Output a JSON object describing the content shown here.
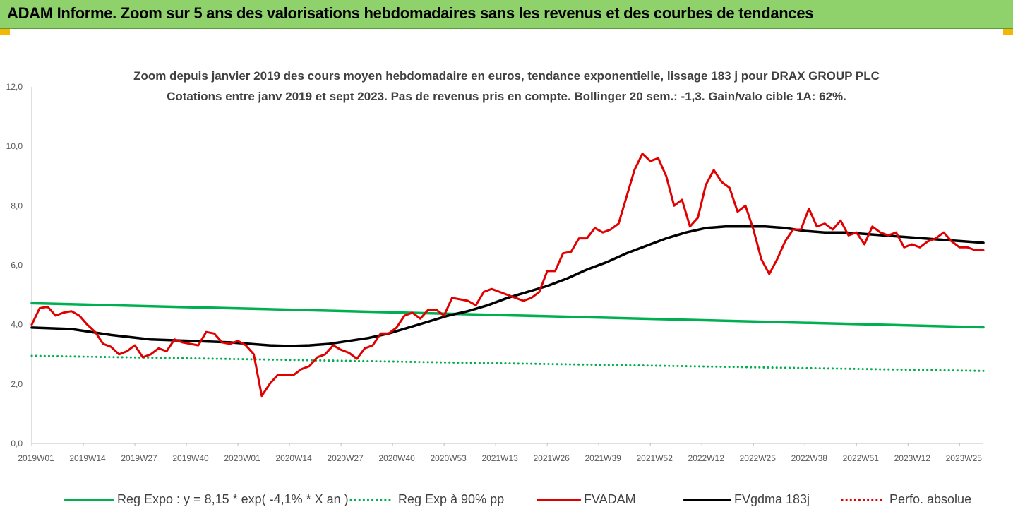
{
  "header": {
    "title": "ADAM Informe. Zoom sur 5 ans des valorisations hebdomadaires sans les revenus et des courbes de tendances"
  },
  "chart_data": {
    "type": "line",
    "title_lines": [
      "Zoom depuis janvier 2019 des cours moyen hebdomadaire en euros, tendance exponentielle, lissage 183 j pour DRAX GROUP PLC",
      "Cotations entre janv 2019 et sept 2023. Pas de revenus pris en compte. Bollinger 20 sem.: -1,3. Gain/valo cible 1A: 62%."
    ],
    "xlabel": "",
    "ylabel": "",
    "ylim": [
      0,
      12
    ],
    "yticks": [
      "0,0",
      "2,0",
      "4,0",
      "6,0",
      "8,0",
      "10,0",
      "12,0"
    ],
    "x_start_week": 0,
    "x_end_week": 240,
    "xtick_labels": [
      "2019W01",
      "2019W14",
      "2019W27",
      "2019W40",
      "2020W01",
      "2020W14",
      "2020W27",
      "2020W40",
      "2020W53",
      "2021W13",
      "2021W26",
      "2021W39",
      "2021W52",
      "2022W12",
      "2022W25",
      "2022W38",
      "2022W51",
      "2023W12",
      "2023W25"
    ],
    "xtick_weeks": [
      0,
      13,
      26,
      39,
      52,
      65,
      78,
      91,
      104,
      117,
      130,
      143,
      156,
      169,
      182,
      195,
      208,
      221,
      234
    ],
    "grid": false,
    "legend_position": "bottom",
    "series": [
      {
        "name": "Reg  Expo : y = 8,15 * exp( -4,1% *  X   an )",
        "color": "#00b050",
        "style": "solid",
        "x": [
          0,
          240
        ],
        "values": [
          4.72,
          3.91
        ]
      },
      {
        "name": "Reg  Exp à 90% pp",
        "color": "#00b050",
        "style": "dotted",
        "x": [
          0,
          240
        ],
        "values": [
          2.95,
          2.44
        ]
      },
      {
        "name": "FVADAM",
        "color": "#e00000",
        "style": "solid",
        "x": [
          0,
          2,
          4,
          6,
          8,
          10,
          12,
          14,
          16,
          18,
          20,
          22,
          24,
          26,
          28,
          30,
          32,
          34,
          36,
          38,
          40,
          42,
          44,
          46,
          48,
          50,
          52,
          54,
          56,
          58,
          60,
          62,
          64,
          66,
          68,
          70,
          72,
          74,
          76,
          78,
          80,
          82,
          84,
          86,
          88,
          90,
          92,
          94,
          96,
          98,
          100,
          102,
          104,
          106,
          108,
          110,
          112,
          114,
          116,
          118,
          120,
          122,
          124,
          126,
          128,
          130,
          132,
          134,
          136,
          138,
          140,
          142,
          144,
          146,
          148,
          150,
          152,
          154,
          156,
          158,
          160,
          162,
          164,
          166,
          168,
          170,
          172,
          174,
          176,
          178,
          180,
          182,
          184,
          186,
          188,
          190,
          192,
          194,
          196,
          198,
          200,
          202,
          204,
          206,
          208,
          210,
          212,
          214,
          216,
          218,
          220,
          222,
          224,
          226,
          228,
          230,
          232,
          234,
          236,
          238,
          240
        ],
        "values": [
          4.0,
          4.55,
          4.6,
          4.3,
          4.4,
          4.45,
          4.3,
          4.0,
          3.75,
          3.35,
          3.25,
          3.0,
          3.1,
          3.3,
          2.9,
          3.0,
          3.2,
          3.1,
          3.5,
          3.4,
          3.35,
          3.3,
          3.75,
          3.7,
          3.4,
          3.35,
          3.45,
          3.3,
          3.0,
          1.6,
          2.0,
          2.3,
          2.3,
          2.3,
          2.5,
          2.6,
          2.9,
          3.0,
          3.3,
          3.15,
          3.05,
          2.85,
          3.2,
          3.3,
          3.7,
          3.7,
          3.9,
          4.3,
          4.4,
          4.2,
          4.5,
          4.5,
          4.3,
          4.9,
          4.85,
          4.8,
          4.65,
          5.1,
          5.2,
          5.1,
          5.0,
          4.9,
          4.8,
          4.9,
          5.1,
          5.8,
          5.8,
          6.4,
          6.45,
          6.9,
          6.9,
          7.25,
          7.1,
          7.2,
          7.4,
          8.3,
          9.2,
          9.75,
          9.5,
          9.6,
          9.0,
          8.0,
          8.2,
          7.3,
          7.6,
          8.7,
          9.2,
          8.8,
          8.6,
          7.8,
          8.0,
          7.2,
          6.2,
          5.7,
          6.2,
          6.8,
          7.2,
          7.2,
          7.9,
          7.3,
          7.4,
          7.2,
          7.5,
          7.0,
          7.1,
          6.7,
          7.3,
          7.1,
          7.0,
          7.1,
          6.6,
          6.7,
          6.6,
          6.8,
          6.9,
          7.1,
          6.8,
          6.6,
          6.6,
          6.5,
          6.5
        ]
      },
      {
        "name": "FVgdma  183j",
        "color": "#000000",
        "style": "solid",
        "x": [
          0,
          10,
          20,
          30,
          40,
          50,
          55,
          60,
          65,
          70,
          75,
          80,
          85,
          90,
          95,
          100,
          105,
          110,
          115,
          120,
          125,
          130,
          135,
          140,
          145,
          150,
          155,
          160,
          165,
          170,
          175,
          180,
          185,
          190,
          195,
          200,
          205,
          210,
          215,
          220,
          225,
          230,
          235,
          240
        ],
        "values": [
          3.9,
          3.85,
          3.65,
          3.5,
          3.45,
          3.4,
          3.35,
          3.3,
          3.28,
          3.3,
          3.35,
          3.45,
          3.55,
          3.7,
          3.9,
          4.1,
          4.3,
          4.45,
          4.65,
          4.9,
          5.1,
          5.3,
          5.55,
          5.85,
          6.1,
          6.4,
          6.65,
          6.9,
          7.1,
          7.25,
          7.3,
          7.3,
          7.3,
          7.25,
          7.15,
          7.1,
          7.1,
          7.05,
          7.0,
          6.95,
          6.9,
          6.85,
          6.8,
          6.75
        ]
      },
      {
        "name": "Perfo. absolue",
        "color": "#e00000",
        "style": "dotted",
        "x": [],
        "values": []
      }
    ]
  }
}
